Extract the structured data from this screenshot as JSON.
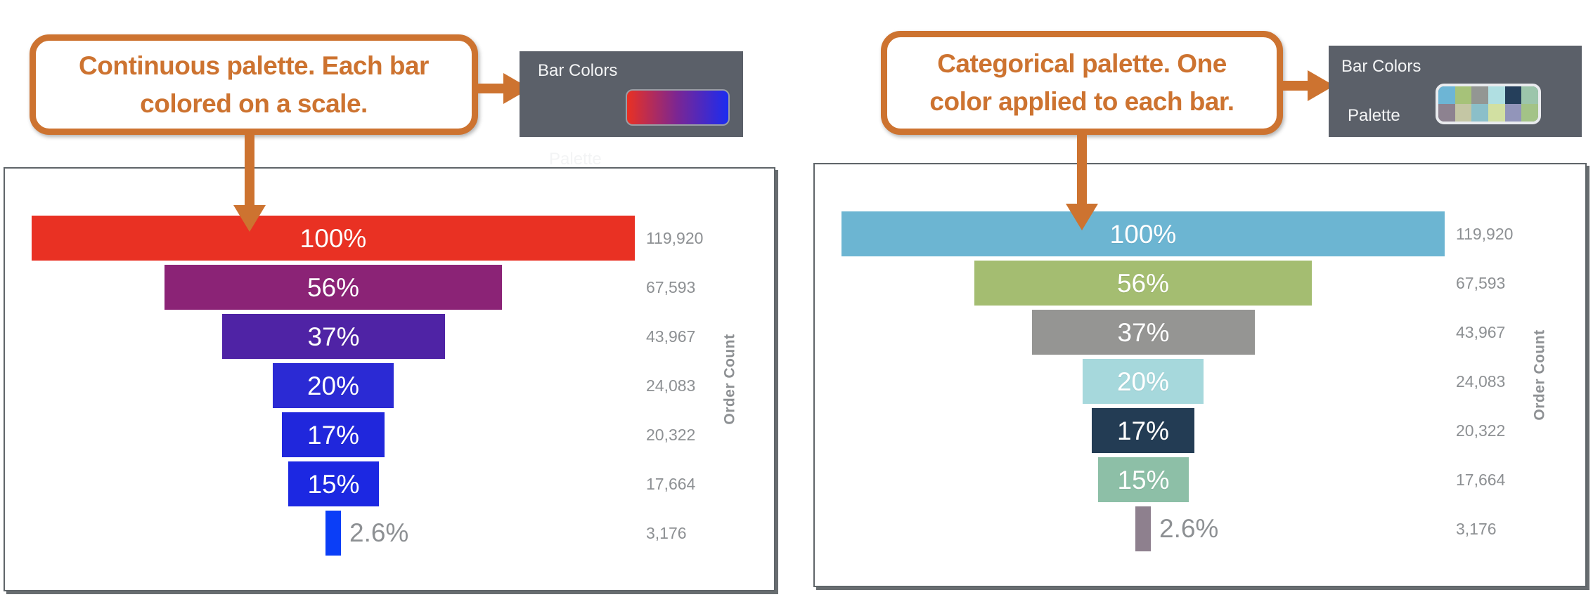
{
  "accent_color": "#cd7330",
  "panel_bg_color": "#5b6069",
  "figure_left": {
    "callout_text": "Continuous palette. Each bar\ncolored on a scale.",
    "panel": {
      "title": "Bar Colors",
      "row_label": "Palette",
      "swatch_type": "gradient",
      "gradient_from": "#e93123",
      "gradient_mid": "#7a2694",
      "gradient_to": "#1b2cf0"
    }
  },
  "figure_right": {
    "callout_text": "Categorical palette. One\ncolor applied to each bar.",
    "panel": {
      "title": "Bar Colors",
      "row_label": "Palette",
      "swatch_type": "categorical",
      "swatches": [
        "#6db5d5",
        "#a6c279",
        "#939693",
        "#b0dfe2",
        "#253f5b",
        "#9cc5ab",
        "#8d8290",
        "#c4c6a4",
        "#8bbfc9",
        "#d2e0a2",
        "#9295ba",
        "#a3c387"
      ]
    }
  },
  "chart_data": [
    {
      "type": "bar",
      "variant": "funnel-centered",
      "title": "",
      "ylabel": "Order Count",
      "palette": "continuous red to blue",
      "percent_labels": [
        "100%",
        "56%",
        "37%",
        "20%",
        "17%",
        "15%",
        "2.6%"
      ],
      "percents": [
        100,
        56,
        37,
        20,
        17,
        15,
        2.6
      ],
      "value_labels": [
        "119,920",
        "67,593",
        "43,967",
        "24,083",
        "20,322",
        "17,664",
        "3,176"
      ],
      "values": [
        119920,
        67593,
        43967,
        24083,
        20322,
        17664,
        3176
      ],
      "bar_colors": [
        "#e93123",
        "#8b2376",
        "#4f23a5",
        "#2b2ad4",
        "#2027dc",
        "#1c28e2",
        "#0b3ef7"
      ],
      "label_color_inside": "#ffffff",
      "label_color_outside": "#8d9093",
      "grid": false,
      "legend": false
    },
    {
      "type": "bar",
      "variant": "funnel-centered",
      "title": "",
      "ylabel": "Order Count",
      "palette": "categorical",
      "percent_labels": [
        "100%",
        "56%",
        "37%",
        "20%",
        "17%",
        "15%",
        "2.6%"
      ],
      "percents": [
        100,
        56,
        37,
        20,
        17,
        15,
        2.6
      ],
      "value_labels": [
        "119,920",
        "67,593",
        "43,967",
        "24,083",
        "20,322",
        "17,664",
        "3,176"
      ],
      "values": [
        119920,
        67593,
        43967,
        24083,
        20322,
        17664,
        3176
      ],
      "bar_colors": [
        "#6cb5d2",
        "#a4bd71",
        "#959593",
        "#a6d8dc",
        "#233c54",
        "#8dbfa7",
        "#8e808e"
      ],
      "label_color_inside": "#ffffff",
      "label_color_outside": "#8d9093",
      "grid": false,
      "legend": false
    }
  ]
}
